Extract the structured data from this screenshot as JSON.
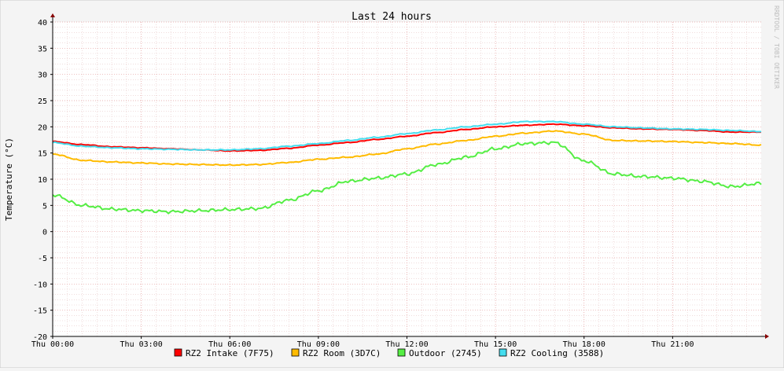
{
  "chart_data": {
    "type": "line",
    "title": "Last 24 hours",
    "ylabel": "Temperature (°C)",
    "xlabel": "",
    "watermark": "RRDTOOL / TOBI OETIKER",
    "ylim": [
      -20,
      40
    ],
    "y_ticks": [
      40,
      35,
      30,
      25,
      20,
      15,
      10,
      5,
      0,
      -5,
      -10,
      -15,
      -20
    ],
    "xlim_hours": [
      0,
      24
    ],
    "x_ticks": [
      {
        "hour": 0,
        "label": "Thu 00:00"
      },
      {
        "hour": 3,
        "label": "Thu 03:00"
      },
      {
        "hour": 6,
        "label": "Thu 06:00"
      },
      {
        "hour": 9,
        "label": "Thu 09:00"
      },
      {
        "hour": 12,
        "label": "Thu 12:00"
      },
      {
        "hour": 15,
        "label": "Thu 15:00"
      },
      {
        "hour": 18,
        "label": "Thu 18:00"
      },
      {
        "hour": 21,
        "label": "Thu 21:00"
      }
    ],
    "grid": true,
    "legend_position": "bottom",
    "x": [
      0,
      1,
      2,
      3,
      4,
      5,
      6,
      7,
      8,
      9,
      10,
      11,
      12,
      13,
      14,
      15,
      16,
      17,
      18,
      19,
      20,
      21,
      22,
      23,
      24
    ],
    "series": [
      {
        "name": "RZ2 Intake (7F75)",
        "color": "#ff0000",
        "values": [
          17.2,
          16.6,
          16.2,
          16.0,
          15.8,
          15.6,
          15.4,
          15.5,
          15.9,
          16.5,
          17.0,
          17.6,
          18.2,
          18.9,
          19.5,
          20.0,
          20.3,
          20.5,
          20.2,
          19.8,
          19.6,
          19.5,
          19.3,
          19.0,
          19.0
        ]
      },
      {
        "name": "RZ2 Room (3D7C)",
        "color": "#ffbb00",
        "values": [
          14.8,
          13.6,
          13.3,
          13.1,
          12.9,
          12.8,
          12.7,
          12.8,
          13.2,
          13.8,
          14.2,
          14.8,
          15.8,
          16.7,
          17.4,
          18.2,
          18.8,
          19.2,
          18.6,
          17.4,
          17.3,
          17.2,
          17.0,
          16.8,
          16.5
        ]
      },
      {
        "name": "Outdoor (2745)",
        "color": "#55ee44",
        "values": [
          7.0,
          5.0,
          4.3,
          4.0,
          3.8,
          4.0,
          4.2,
          4.4,
          6.0,
          7.8,
          9.6,
          10.2,
          11.0,
          12.8,
          14.2,
          15.8,
          16.8,
          17.0,
          13.5,
          11.0,
          10.5,
          10.2,
          9.6,
          8.6,
          9.2
        ]
      },
      {
        "name": "RZ2 Cooling (3588)",
        "color": "#44ddee",
        "values": [
          17.0,
          16.3,
          16.0,
          15.8,
          15.7,
          15.6,
          15.6,
          15.8,
          16.3,
          16.8,
          17.4,
          18.0,
          18.7,
          19.4,
          20.0,
          20.5,
          21.0,
          21.0,
          20.5,
          20.0,
          19.8,
          19.6,
          19.5,
          19.3,
          19.1
        ]
      }
    ]
  }
}
